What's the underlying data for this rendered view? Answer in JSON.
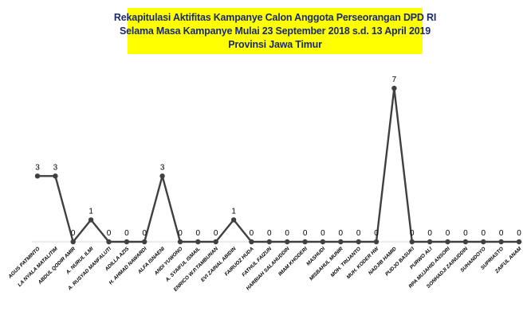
{
  "chart_data": {
    "type": "line",
    "title": [
      "Rekapitulasi Aktifitas Kampanye Calon Anggota Perseorangan DPD RI",
      "Selama Masa Kampanye Mulai 23 September 2018 s.d. 13 April 2019",
      "Provinsi Jawa Timur"
    ],
    "categories": [
      "AGUS PATMINTO",
      "LA NYALA MATALITIM",
      "ABDUL QODIR AMIR",
      "A. NURUL ILMI",
      "A. RUSYAD MANFALUTI",
      "ADILLA AZIS",
      "H. AHMAD NAWARDI",
      "ALFA ISNAENI",
      "ANDI YUWONO",
      "A. SYAIFUL ISMAIL",
      "ENRICO W.P.TAMBUNAN",
      "EVI ZAINAL ABIDIN",
      "FAIRUOZ HUDA",
      "FATHUL FAIZUN",
      "HARBIAH SALAHUDDIN",
      "IMAM KHODERI",
      "MASHUDI",
      "MISBAHUL MUNIR",
      "MOH. TRIJANTO",
      "MUH. KODER HW",
      "NADJIB HAMID",
      "PUDJO BASUKI",
      "PURWO ALI",
      "RPA MUJAHID ANSORI",
      "SONHADJI ZAINUDDIN",
      "SUHANDOYO",
      "SUPRIASTO",
      "ZAIFUL ANAM"
    ],
    "values": [
      3,
      3,
      0,
      1,
      0,
      0,
      0,
      3,
      0,
      0,
      0,
      1,
      0,
      0,
      0,
      0,
      0,
      0,
      0,
      0,
      7,
      0,
      0,
      0,
      0,
      0,
      0,
      0
    ],
    "data_labels": [
      "3",
      "3",
      "0",
      "1",
      "0",
      "0",
      "0",
      "3",
      "0",
      "0",
      "0",
      "1",
      "0",
      "0",
      "0",
      "0",
      "0",
      "0",
      "0",
      "0",
      "7",
      "0",
      "0",
      "0",
      "0",
      "0",
      "0",
      "0"
    ],
    "ylim": [
      0,
      7
    ],
    "grid": false,
    "legend": "none",
    "line_color": "#404040",
    "marker_color": "#404040"
  }
}
